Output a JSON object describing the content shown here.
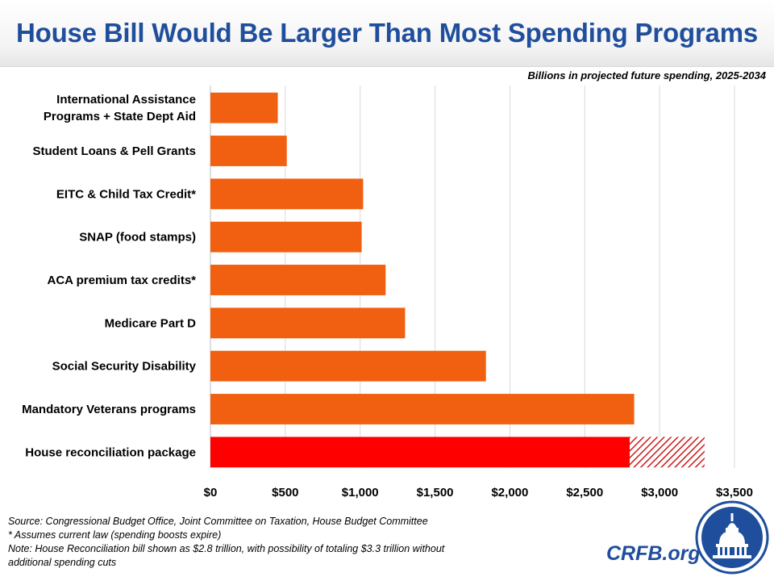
{
  "header": {
    "title": "House Bill Would Be Larger Than Most Spending Programs"
  },
  "subtitle": "Billions in projected future spending, 2025-2034",
  "colors": {
    "bar": "#f06010",
    "highlight": "#ff0000",
    "hatch": "#cc1a1a",
    "brand": "#1f4e9c"
  },
  "chart_data": {
    "type": "bar",
    "orientation": "horizontal",
    "title": "House Bill Would Be Larger Than Most Spending Programs",
    "xlabel": "Billions in projected future spending, 2025-2034",
    "ylabel": "",
    "xlim": [
      0,
      3500
    ],
    "xticks": [
      0,
      500,
      1000,
      1500,
      2000,
      2500,
      3000,
      3500
    ],
    "xtick_labels": [
      "$0",
      "$500",
      "$1,000",
      "$1,500",
      "$2,000",
      "$2,500",
      "$3,000",
      "$3,500"
    ],
    "grid": true,
    "categories": [
      [
        "International Assistance",
        "Programs + State Dept Aid"
      ],
      [
        "Student Loans & Pell Grants"
      ],
      [
        "EITC & Child Tax Credit*"
      ],
      [
        "SNAP (food stamps)"
      ],
      [
        "ACA premium tax credits*"
      ],
      [
        "Medicare Part D"
      ],
      [
        "Social Security Disability"
      ],
      [
        "Mandatory Veterans programs"
      ],
      [
        "House reconciliation package"
      ]
    ],
    "values": [
      450,
      510,
      1020,
      1010,
      1170,
      1300,
      1840,
      2830,
      2800
    ],
    "additional_possible": [
      0,
      0,
      0,
      0,
      0,
      0,
      0,
      0,
      500
    ]
  },
  "footnotes": {
    "source": "Source: Congressional Budget Office, Joint Committee on Taxation, House Budget Committee",
    "assumption": "* Assumes current law (spending boosts expire)",
    "note_line1": "Note: House Reconciliation bill shown as $2.8 trillion, with possibility of totaling $3.3 trillion without",
    "note_line2": "additional spending cuts"
  },
  "brand": {
    "text": "CRFB.org",
    "logo_icon": "capitol-dome-icon"
  }
}
